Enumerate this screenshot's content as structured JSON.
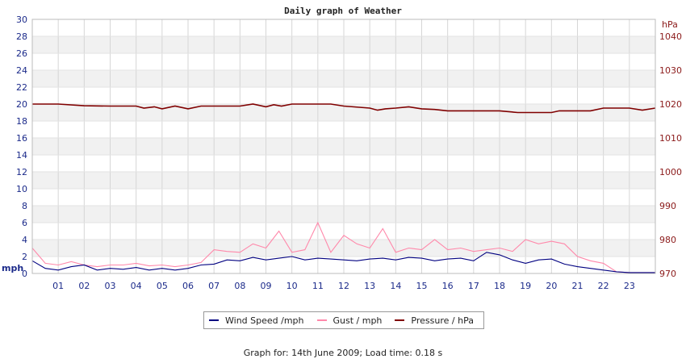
{
  "chart_data": {
    "type": "line",
    "title": "Daily graph of Weather",
    "x_ticks": [
      "01",
      "02",
      "03",
      "04",
      "05",
      "06",
      "07",
      "08",
      "09",
      "10",
      "11",
      "12",
      "13",
      "14",
      "15",
      "16",
      "17",
      "18",
      "19",
      "20",
      "21",
      "22",
      "23"
    ],
    "xlim": [
      0,
      24
    ],
    "y_left": {
      "unit": "mph",
      "lim": [
        0,
        30
      ],
      "ticks": [
        0,
        2,
        4,
        6,
        8,
        10,
        12,
        14,
        16,
        18,
        20,
        22,
        24,
        26,
        28,
        30
      ]
    },
    "y_right": {
      "unit": "hPa",
      "lim": [
        970,
        1045
      ],
      "ticks": [
        970,
        980,
        990,
        1000,
        1010,
        1020,
        1030,
        1040
      ]
    },
    "grid": true,
    "legend_position": "bottom-center",
    "series": [
      {
        "name": "Wind Speed /mph",
        "axis": "left",
        "color": "#000080",
        "x": [
          0,
          0.5,
          1,
          1.5,
          2,
          2.5,
          3,
          3.5,
          4,
          4.5,
          5,
          5.5,
          6,
          6.5,
          7,
          7.5,
          8,
          8.5,
          9,
          9.5,
          10,
          10.5,
          11,
          11.5,
          12,
          12.5,
          13,
          13.5,
          14,
          14.5,
          15,
          15.5,
          16,
          16.5,
          17,
          17.5,
          18,
          18.5,
          19,
          19.5,
          20,
          20.5,
          21,
          21.5,
          22,
          22.5,
          23,
          24
        ],
        "values": [
          1.5,
          0.6,
          0.4,
          0.8,
          1.0,
          0.4,
          0.6,
          0.5,
          0.7,
          0.4,
          0.6,
          0.4,
          0.6,
          1.0,
          1.1,
          1.6,
          1.5,
          1.9,
          1.6,
          1.8,
          2.0,
          1.6,
          1.8,
          1.7,
          1.6,
          1.5,
          1.7,
          1.8,
          1.6,
          1.9,
          1.8,
          1.5,
          1.7,
          1.8,
          1.5,
          2.5,
          2.2,
          1.6,
          1.2,
          1.6,
          1.7,
          1.1,
          0.8,
          0.6,
          0.4,
          0.2,
          0.1,
          0.1
        ]
      },
      {
        "name": "Gust / mph",
        "axis": "left",
        "color": "#ff88aa",
        "x": [
          0,
          0.5,
          1,
          1.5,
          2,
          2.5,
          3,
          3.5,
          4,
          4.5,
          5,
          5.5,
          6,
          6.5,
          7,
          7.5,
          8,
          8.5,
          9,
          9.5,
          10,
          10.5,
          11,
          11.5,
          12,
          12.5,
          13,
          13.5,
          14,
          14.5,
          15,
          15.5,
          16,
          16.5,
          17,
          17.5,
          18,
          18.5,
          19,
          19.5,
          20,
          20.5,
          21,
          21.5,
          22,
          22.5,
          23,
          24
        ],
        "values": [
          3.0,
          1.2,
          1.0,
          1.4,
          1.0,
          0.8,
          1.0,
          1.0,
          1.2,
          0.9,
          1.0,
          0.8,
          1.0,
          1.3,
          2.8,
          2.6,
          2.5,
          3.5,
          3.0,
          5.0,
          2.5,
          2.8,
          6.0,
          2.5,
          4.5,
          3.5,
          3.0,
          5.3,
          2.5,
          3.0,
          2.8,
          4.0,
          2.8,
          3.0,
          2.6,
          2.8,
          3.0,
          2.6,
          4.0,
          3.5,
          3.8,
          3.5,
          2.0,
          1.5,
          1.2,
          0.2,
          0.1,
          0.1
        ]
      },
      {
        "name": "Pressure / hPa",
        "axis": "right",
        "color": "#800000",
        "x": [
          0,
          1,
          2,
          3,
          4,
          4.3,
          4.7,
          5,
          5.5,
          6,
          6.5,
          7,
          8,
          8.5,
          9,
          9.3,
          9.6,
          10,
          11,
          11.5,
          12,
          13,
          13.3,
          13.6,
          14,
          14.5,
          15,
          15.5,
          16,
          17,
          18,
          18.7,
          19,
          20,
          20.3,
          21,
          21.5,
          22,
          22.5,
          23,
          23.5,
          24
        ],
        "values": [
          1020,
          1020,
          1019.5,
          1019.4,
          1019.4,
          1018.8,
          1019.2,
          1018.6,
          1019.4,
          1018.6,
          1019.4,
          1019.4,
          1019.4,
          1020,
          1019.2,
          1019.8,
          1019.4,
          1020,
          1020,
          1020,
          1019.4,
          1018.8,
          1018.2,
          1018.6,
          1018.8,
          1019.2,
          1018.6,
          1018.4,
          1018,
          1018,
          1018,
          1017.5,
          1017.5,
          1017.5,
          1018,
          1018,
          1018,
          1018.8,
          1018.8,
          1018.8,
          1018.2,
          1018.8
        ]
      }
    ]
  },
  "legend": {
    "wind_label": "Wind Speed /mph",
    "gust_label": "Gust / mph",
    "pressure_label": "Pressure / hPa"
  },
  "footer": "Graph for: 14th June 2009; Load time: 0.18 s"
}
